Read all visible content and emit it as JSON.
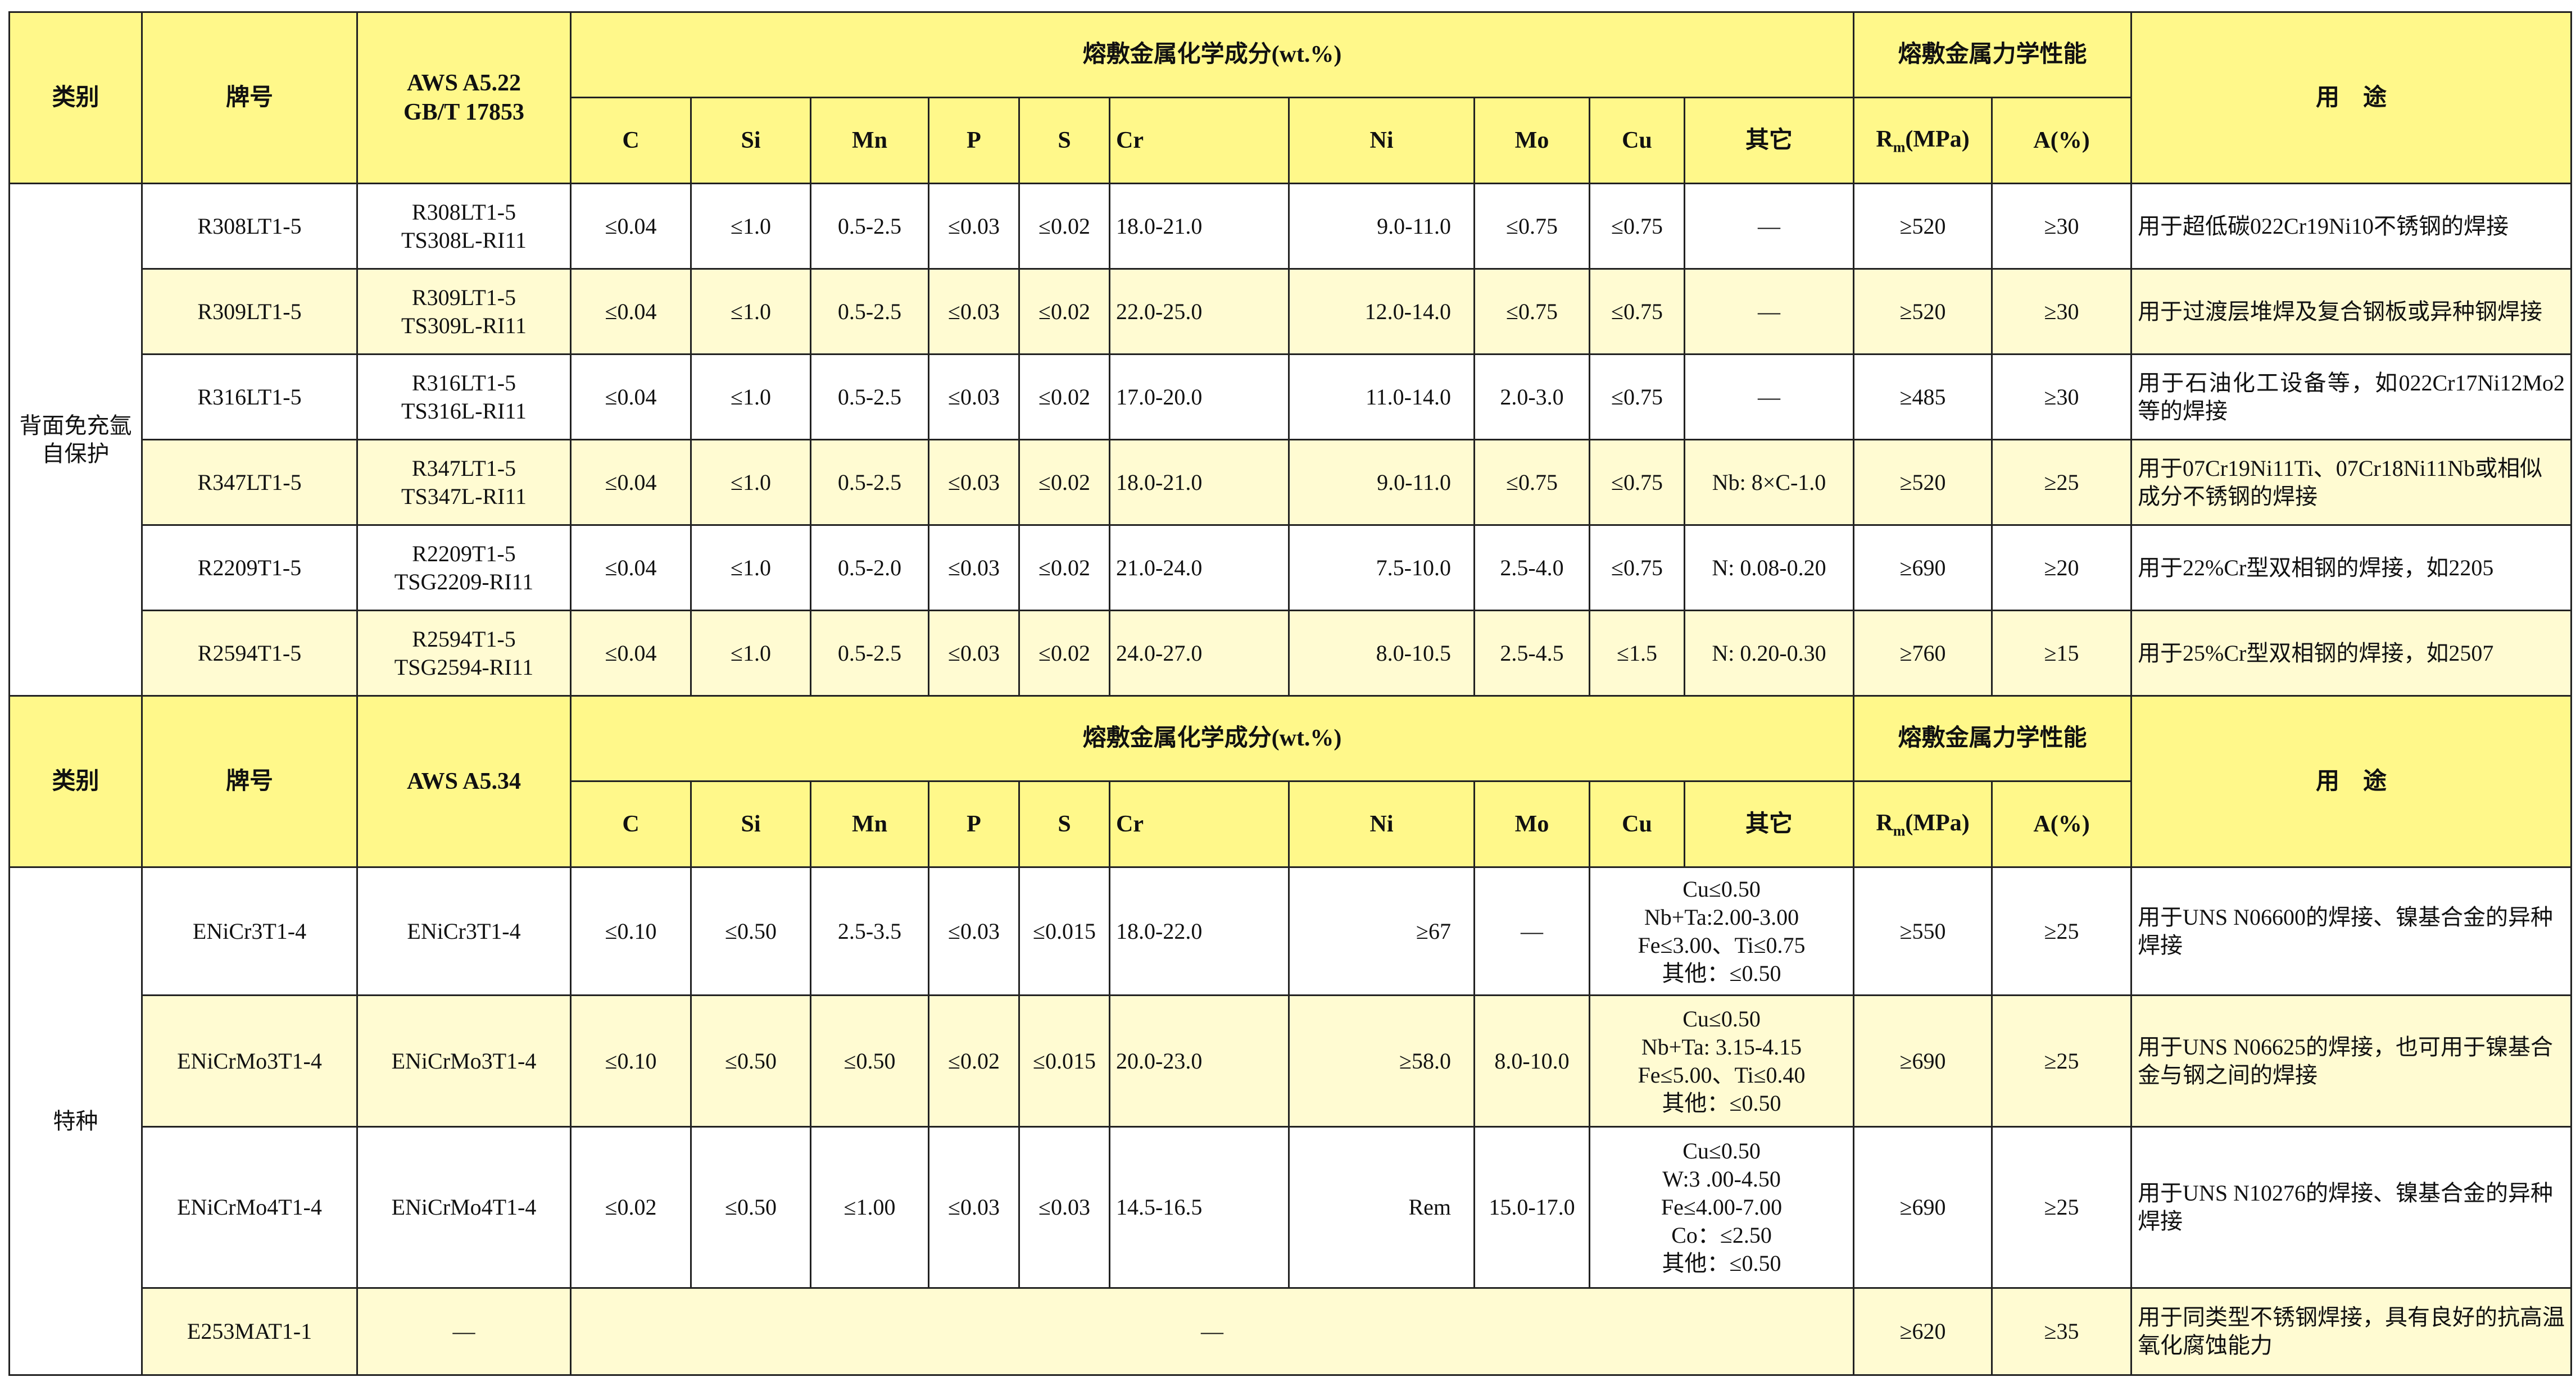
{
  "colors": {
    "header": "#FFF88A",
    "alt_row": "#FFFBD2",
    "border": "#222222"
  },
  "section1": {
    "headers": {
      "category": "类别",
      "brand": "牌号",
      "standard_line1": "AWS A5.22",
      "standard_line2": "GB/T 17853",
      "composition": "熔敷金属化学成分(wt.%)",
      "mechanical": "熔敷金属力学性能",
      "usage": "用　途",
      "elements": [
        "C",
        "Si",
        "Mn",
        "P",
        "S",
        "Cr",
        "Ni",
        "Mo",
        "Cu",
        "其它"
      ],
      "rm": "R",
      "rm_sub": "m",
      "rm_unit": "(MPa)",
      "a": "A(%)"
    },
    "category": "背面免充氩自保护",
    "rows": [
      {
        "brand": "R308LT1-5",
        "std": [
          "R308LT1-5",
          "TS308L-RI11"
        ],
        "vals": [
          "≤0.04",
          "≤1.0",
          "0.5-2.5",
          "≤0.03",
          "≤0.02",
          "18.0-21.0",
          "9.0-11.0",
          "≤0.75",
          "≤0.75",
          "—"
        ],
        "rm": "≥520",
        "a": "≥30",
        "usage": "用于超低碳022Cr19Ni10不锈钢的焊接"
      },
      {
        "brand": "R309LT1-5",
        "std": [
          "R309LT1-5",
          "TS309L-RI11"
        ],
        "vals": [
          "≤0.04",
          "≤1.0",
          "0.5-2.5",
          "≤0.03",
          "≤0.02",
          "22.0-25.0",
          "12.0-14.0",
          "≤0.75",
          "≤0.75",
          "—"
        ],
        "rm": "≥520",
        "a": "≥30",
        "usage": "用于过渡层堆焊及复合钢板或异种钢焊接"
      },
      {
        "brand": "R316LT1-5",
        "std": [
          "R316LT1-5",
          "TS316L-RI11"
        ],
        "vals": [
          "≤0.04",
          "≤1.0",
          "0.5-2.5",
          "≤0.03",
          "≤0.02",
          "17.0-20.0",
          "11.0-14.0",
          "2.0-3.0",
          "≤0.75",
          "—"
        ],
        "rm": "≥485",
        "a": "≥30",
        "usage": "用于石油化工设备等，如022Cr17Ni12Mo2等的焊接"
      },
      {
        "brand": "R347LT1-5",
        "std": [
          "R347LT1-5",
          "TS347L-RI11"
        ],
        "vals": [
          "≤0.04",
          "≤1.0",
          "0.5-2.5",
          "≤0.03",
          "≤0.02",
          "18.0-21.0",
          "9.0-11.0",
          "≤0.75",
          "≤0.75",
          "Nb: 8×C-1.0"
        ],
        "rm": "≥520",
        "a": "≥25",
        "usage": "用于07Cr19Ni11Ti、07Cr18Ni11Nb或相似成分不锈钢的焊接"
      },
      {
        "brand": "R2209T1-5",
        "std": [
          "R2209T1-5",
          "TSG2209-RI11"
        ],
        "vals": [
          "≤0.04",
          "≤1.0",
          "0.5-2.0",
          "≤0.03",
          "≤0.02",
          "21.0-24.0",
          "7.5-10.0",
          "2.5-4.0",
          "≤0.75",
          "N: 0.08-0.20"
        ],
        "rm": "≥690",
        "a": "≥20",
        "usage": "用于22%Cr型双相钢的焊接，如2205"
      },
      {
        "brand": "R2594T1-5",
        "std": [
          "R2594T1-5",
          "TSG2594-RI11"
        ],
        "vals": [
          "≤0.04",
          "≤1.0",
          "0.5-2.5",
          "≤0.03",
          "≤0.02",
          "24.0-27.0",
          "8.0-10.5",
          "2.5-4.5",
          "≤1.5",
          "N: 0.20-0.30"
        ],
        "rm": "≥760",
        "a": "≥15",
        "usage": "用于25%Cr型双相钢的焊接，如2507"
      }
    ]
  },
  "section2": {
    "headers": {
      "category": "类别",
      "brand": "牌号",
      "standard": "AWS A5.34",
      "composition": "熔敷金属化学成分(wt.%)",
      "mechanical": "熔敷金属力学性能",
      "usage": "用　途",
      "elements": [
        "C",
        "Si",
        "Mn",
        "P",
        "S",
        "Cr",
        "Ni",
        "Mo",
        "Cu",
        "其它"
      ],
      "rm": "R",
      "rm_sub": "m",
      "rm_unit": "(MPa)",
      "a": "A(%)"
    },
    "category": "特种",
    "rows": [
      {
        "brand": "ENiCr3T1-4",
        "std": [
          "ENiCr3T1-4"
        ],
        "vals": [
          "≤0.10",
          "≤0.50",
          "2.5-3.5",
          "≤0.03",
          "≤0.015",
          "18.0-22.0",
          "≥67",
          "—"
        ],
        "other": [
          "Cu≤0.50",
          "Nb+Ta:2.00-3.00",
          "Fe≤3.00、Ti≤0.75",
          "其他：≤0.50"
        ],
        "rm": "≥550",
        "a": "≥25",
        "usage": "用于UNS N06600的焊接、镍基合金的异种焊接"
      },
      {
        "brand": "ENiCrMo3T1-4",
        "std": [
          "ENiCrMo3T1-4"
        ],
        "vals": [
          "≤0.10",
          "≤0.50",
          "≤0.50",
          "≤0.02",
          "≤0.015",
          "20.0-23.0",
          "≥58.0",
          "8.0-10.0"
        ],
        "other": [
          "Cu≤0.50",
          "Nb+Ta: 3.15-4.15",
          "Fe≤5.00、Ti≤0.40",
          "其他：≤0.50"
        ],
        "rm": "≥690",
        "a": "≥25",
        "usage": "用于UNS N06625的焊接，也可用于镍基合金与钢之间的焊接"
      },
      {
        "brand": "ENiCrMo4T1-4",
        "std": [
          "ENiCrMo4T1-4"
        ],
        "vals": [
          "≤0.02",
          "≤0.50",
          "≤1.00",
          "≤0.03",
          "≤0.03",
          "14.5-16.5",
          "Rem",
          "15.0-17.0"
        ],
        "other": [
          "Cu≤0.50",
          "W:3 .00-4.50",
          "Fe≤4.00-7.00",
          "Co：≤2.50",
          "其他：≤0.50"
        ],
        "rm": "≥690",
        "a": "≥25",
        "usage": "用于UNS N10276的焊接、镍基合金的异种焊接"
      },
      {
        "brand": "E253MAT1-1",
        "std_dash": "—",
        "comp_dash": "—",
        "rm": "≥620",
        "a": "≥35",
        "usage": "用于同类型不锈钢焊接，具有良好的抗高温氧化腐蚀能力"
      }
    ]
  }
}
